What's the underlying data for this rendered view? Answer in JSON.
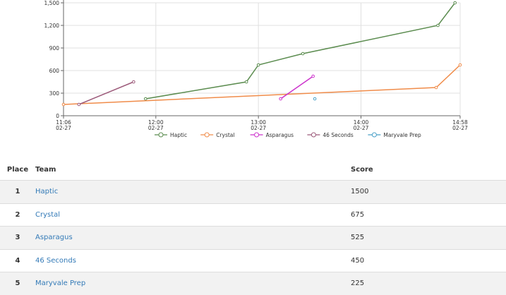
{
  "chart_data": {
    "type": "line",
    "x_ticks": [
      {
        "time": "11:06",
        "date": "02-27"
      },
      {
        "time": "12:00",
        "date": "02-27"
      },
      {
        "time": "13:00",
        "date": "02-27"
      },
      {
        "time": "14:00",
        "date": "02-27"
      },
      {
        "time": "14:58",
        "date": "02-27"
      }
    ],
    "y_ticks": [
      "0",
      "300",
      "600",
      "900",
      "1,200",
      "1,500"
    ],
    "ylim": [
      0,
      1500
    ],
    "xlim": [
      "11:06",
      "14:58"
    ],
    "grid": true,
    "legend_position": "bottom",
    "series": [
      {
        "name": "Haptic",
        "color": "#5b8c4f",
        "points": [
          [
            "11:54",
            225
          ],
          [
            "12:53",
            450
          ],
          [
            "13:00",
            675
          ],
          [
            "13:26",
            825
          ],
          [
            "14:45",
            1200
          ],
          [
            "14:55",
            1500
          ]
        ]
      },
      {
        "name": "Crystal",
        "color": "#f08c4a",
        "points": [
          [
            "11:06",
            150
          ],
          [
            "14:44",
            375
          ],
          [
            "14:58",
            675
          ]
        ]
      },
      {
        "name": "Asparagus",
        "color": "#cc33cc",
        "points": [
          [
            "13:13",
            225
          ],
          [
            "13:32",
            525
          ]
        ]
      },
      {
        "name": "46 Seconds",
        "color": "#9c5a7a",
        "points": [
          [
            "11:15",
            150
          ],
          [
            "11:47",
            450
          ]
        ]
      },
      {
        "name": "Maryvale Prep",
        "color": "#4aa0c8",
        "points": [
          [
            "13:33",
            225
          ]
        ]
      }
    ]
  },
  "table": {
    "headers": {
      "place": "Place",
      "team": "Team",
      "score": "Score"
    },
    "rows": [
      {
        "place": "1",
        "team": "Haptic",
        "score": "1500"
      },
      {
        "place": "2",
        "team": "Crystal",
        "score": "675"
      },
      {
        "place": "3",
        "team": "Asparagus",
        "score": "525"
      },
      {
        "place": "4",
        "team": "46 Seconds",
        "score": "450"
      },
      {
        "place": "5",
        "team": "Maryvale Prep",
        "score": "225"
      }
    ]
  }
}
